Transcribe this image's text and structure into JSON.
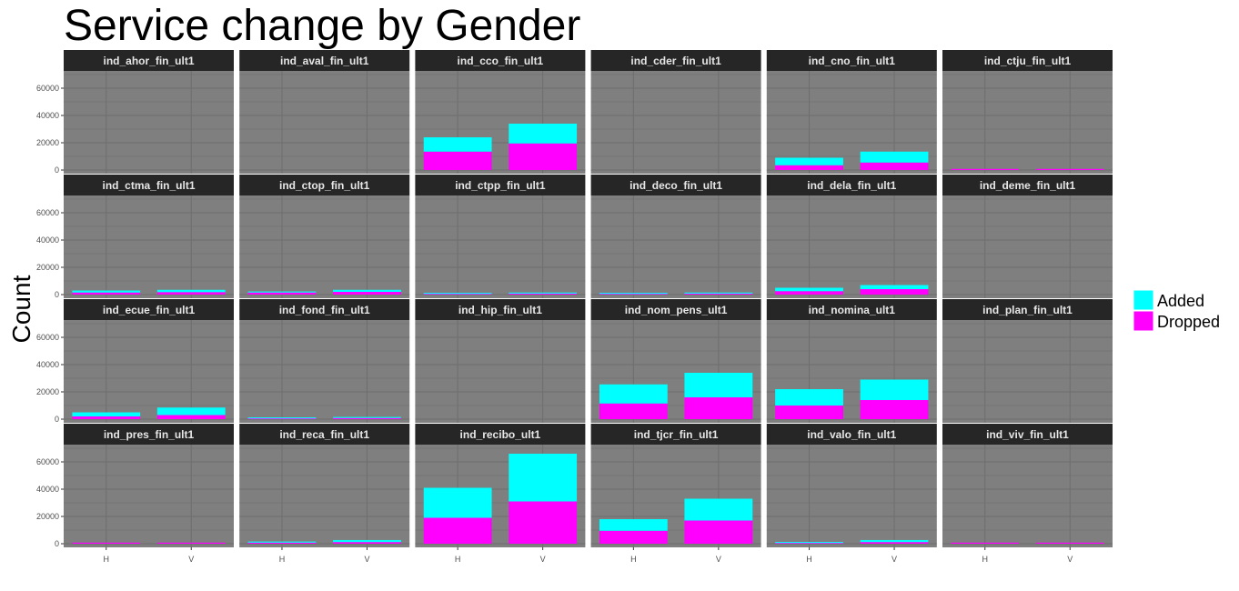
{
  "chart_data": {
    "type": "bar",
    "stacked": true,
    "facet_grid": "4x6",
    "title": "Service change by Gender",
    "xlabel": "",
    "ylabel": "Count",
    "categories": [
      "H",
      "V"
    ],
    "ylim": [
      0,
      70000
    ],
    "yticks": [
      0,
      20000,
      40000,
      60000
    ],
    "ytick_labels": [
      "0",
      "20000",
      "40000",
      "60000"
    ],
    "grid": true,
    "legend": {
      "position": "right",
      "title": "",
      "entries": [
        {
          "label": "Added",
          "color": "#00FFFF"
        },
        {
          "label": "Dropped",
          "color": "#FF00FF"
        }
      ]
    },
    "colors": {
      "panel_bg": "#7F7F7F",
      "grid": "#6E6E6E",
      "strip_bg": "#262626",
      "strip_text": "#E6E6E6",
      "added": "#00FFFF",
      "dropped": "#FF00FF"
    },
    "panels": [
      {
        "label": "ind_ahor_fin_ult1",
        "series": [
          {
            "name": "Dropped",
            "values": [
              0,
              0
            ]
          },
          {
            "name": "Added",
            "values": [
              0,
              0
            ]
          }
        ]
      },
      {
        "label": "ind_aval_fin_ult1",
        "series": [
          {
            "name": "Dropped",
            "values": [
              0,
              0
            ]
          },
          {
            "name": "Added",
            "values": [
              0,
              0
            ]
          }
        ]
      },
      {
        "label": "ind_cco_fin_ult1",
        "series": [
          {
            "name": "Dropped",
            "values": [
              13500,
              19500
            ]
          },
          {
            "name": "Added",
            "values": [
              10500,
              14500
            ]
          }
        ]
      },
      {
        "label": "ind_cder_fin_ult1",
        "series": [
          {
            "name": "Dropped",
            "values": [
              0,
              0
            ]
          },
          {
            "name": "Added",
            "values": [
              0,
              0
            ]
          }
        ]
      },
      {
        "label": "ind_cno_fin_ult1",
        "series": [
          {
            "name": "Dropped",
            "values": [
              3500,
              5500
            ]
          },
          {
            "name": "Added",
            "values": [
              5500,
              8000
            ]
          }
        ]
      },
      {
        "label": "ind_ctju_fin_ult1",
        "series": [
          {
            "name": "Dropped",
            "values": [
              500,
              600
            ]
          },
          {
            "name": "Added",
            "values": [
              0,
              0
            ]
          }
        ]
      },
      {
        "label": "ind_ctma_fin_ult1",
        "series": [
          {
            "name": "Dropped",
            "values": [
              1500,
              1800
            ]
          },
          {
            "name": "Added",
            "values": [
              1500,
              1700
            ]
          }
        ]
      },
      {
        "label": "ind_ctop_fin_ult1",
        "series": [
          {
            "name": "Dropped",
            "values": [
              1500,
              2000
            ]
          },
          {
            "name": "Added",
            "values": [
              300,
              1500
            ]
          }
        ]
      },
      {
        "label": "ind_ctpp_fin_ult1",
        "series": [
          {
            "name": "Dropped",
            "values": [
              500,
              700
            ]
          },
          {
            "name": "Added",
            "values": [
              200,
              600
            ]
          }
        ]
      },
      {
        "label": "ind_deco_fin_ult1",
        "series": [
          {
            "name": "Dropped",
            "values": [
              500,
              700
            ]
          },
          {
            "name": "Added",
            "values": [
              500,
              600
            ]
          }
        ]
      },
      {
        "label": "ind_dela_fin_ult1",
        "series": [
          {
            "name": "Dropped",
            "values": [
              2500,
              4000
            ]
          },
          {
            "name": "Added",
            "values": [
              2500,
              3000
            ]
          }
        ]
      },
      {
        "label": "ind_deme_fin_ult1",
        "series": [
          {
            "name": "Dropped",
            "values": [
              0,
              0
            ]
          },
          {
            "name": "Added",
            "values": [
              0,
              0
            ]
          }
        ]
      },
      {
        "label": "ind_ecue_fin_ult1",
        "series": [
          {
            "name": "Dropped",
            "values": [
              2000,
              3000
            ]
          },
          {
            "name": "Added",
            "values": [
              3000,
              5500
            ]
          }
        ]
      },
      {
        "label": "ind_fond_fin_ult1",
        "series": [
          {
            "name": "Dropped",
            "values": [
              500,
              800
            ]
          },
          {
            "name": "Added",
            "values": [
              300,
              700
            ]
          }
        ]
      },
      {
        "label": "ind_hip_fin_ult1",
        "series": [
          {
            "name": "Dropped",
            "values": [
              0,
              0
            ]
          },
          {
            "name": "Added",
            "values": [
              0,
              0
            ]
          }
        ]
      },
      {
        "label": "ind_nom_pens_ult1",
        "series": [
          {
            "name": "Dropped",
            "values": [
              11500,
              16000
            ]
          },
          {
            "name": "Added",
            "values": [
              14000,
              18000
            ]
          }
        ]
      },
      {
        "label": "ind_nomina_ult1",
        "series": [
          {
            "name": "Dropped",
            "values": [
              10000,
              14000
            ]
          },
          {
            "name": "Added",
            "values": [
              12000,
              15000
            ]
          }
        ]
      },
      {
        "label": "ind_plan_fin_ult1",
        "series": [
          {
            "name": "Dropped",
            "values": [
              0,
              0
            ]
          },
          {
            "name": "Added",
            "values": [
              0,
              0
            ]
          }
        ]
      },
      {
        "label": "ind_pres_fin_ult1",
        "series": [
          {
            "name": "Dropped",
            "values": [
              300,
              300
            ]
          },
          {
            "name": "Added",
            "values": [
              0,
              0
            ]
          }
        ]
      },
      {
        "label": "ind_reca_fin_ult1",
        "series": [
          {
            "name": "Dropped",
            "values": [
              800,
              1200
            ]
          },
          {
            "name": "Added",
            "values": [
              700,
              1500
            ]
          }
        ]
      },
      {
        "label": "ind_recibo_ult1",
        "series": [
          {
            "name": "Dropped",
            "values": [
              19000,
              31000
            ]
          },
          {
            "name": "Added",
            "values": [
              22000,
              35000
            ]
          }
        ]
      },
      {
        "label": "ind_tjcr_fin_ult1",
        "series": [
          {
            "name": "Dropped",
            "values": [
              9500,
              17000
            ]
          },
          {
            "name": "Added",
            "values": [
              8500,
              16000
            ]
          }
        ]
      },
      {
        "label": "ind_valo_fin_ult1",
        "series": [
          {
            "name": "Dropped",
            "values": [
              500,
              1200
            ]
          },
          {
            "name": "Added",
            "values": [
              500,
              1500
            ]
          }
        ]
      },
      {
        "label": "ind_viv_fin_ult1",
        "series": [
          {
            "name": "Dropped",
            "values": [
              300,
              300
            ]
          },
          {
            "name": "Added",
            "values": [
              0,
              0
            ]
          }
        ]
      }
    ]
  }
}
